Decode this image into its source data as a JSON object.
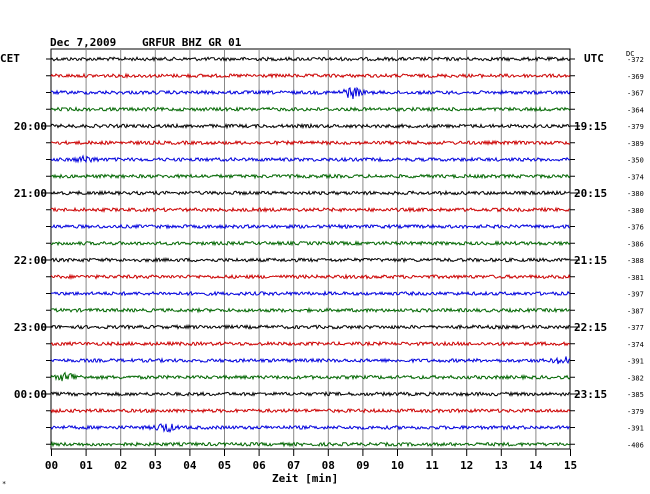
{
  "header": {
    "date": "Dec 7,2009",
    "station": "GRFUR BHZ GR 01",
    "left_tz": "CET",
    "right_tz": "UTC",
    "dc_label": "DC"
  },
  "chart_data": {
    "type": "line",
    "title": "GRFUR BHZ GR 01",
    "xlabel": "Zeit [min]",
    "xlim": [
      0,
      15
    ],
    "x_ticks": [
      "00",
      "01",
      "02",
      "03",
      "04",
      "05",
      "06",
      "07",
      "08",
      "09",
      "10",
      "11",
      "12",
      "13",
      "14",
      "15"
    ],
    "trace_colors": [
      "#000000",
      "#cc0000",
      "#0000dd",
      "#006600"
    ],
    "left_hour_labels": [
      "20:00",
      "21:00",
      "22:00",
      "23:00",
      "00:00"
    ],
    "right_hour_labels": [
      "19:15",
      "20:15",
      "21:15",
      "22:15",
      "23:15"
    ],
    "dc_offsets": [
      "-372",
      "-369",
      "-367",
      "-364",
      "-379",
      "-389",
      "-350",
      "-374",
      "-380",
      "-380",
      "-376",
      "-386",
      "-388",
      "-381",
      "-397",
      "-387",
      "-377",
      "-374",
      "-391",
      "-382",
      "-385",
      "-379",
      "-391",
      "-406"
    ],
    "events": [
      {
        "trace": 2,
        "minute": 8.7,
        "amplitude": 1.0
      },
      {
        "trace": 6,
        "minute": 1.0,
        "amplitude": 0.5
      },
      {
        "trace": 18,
        "minute": 14.8,
        "amplitude": 0.6
      },
      {
        "trace": 19,
        "minute": 0.5,
        "amplitude": 0.8
      },
      {
        "trace": 22,
        "minute": 3.3,
        "amplitude": 0.8
      }
    ]
  },
  "footer": {
    "corner_mark": "*"
  }
}
